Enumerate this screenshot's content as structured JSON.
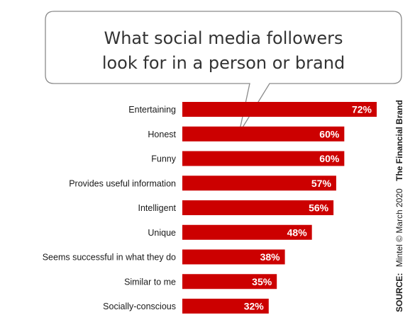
{
  "chart_data": {
    "type": "bar",
    "orientation": "horizontal",
    "title": "What social media followers look for in a person or brand",
    "title_lines": [
      "What social media followers",
      "look for in a person or brand"
    ],
    "categories": [
      "Entertaining",
      "Honest",
      "Funny",
      "Provides useful information",
      "Intelligent",
      "Unique",
      "Seems successful in what they do",
      "Similar to me",
      "Socially-conscious"
    ],
    "values": [
      72,
      60,
      60,
      57,
      56,
      48,
      38,
      35,
      32
    ],
    "value_labels": [
      "72%",
      "60%",
      "60%",
      "57%",
      "56%",
      "48%",
      "38%",
      "35%",
      "32%"
    ],
    "unit": "%",
    "xlim": [
      0,
      72
    ],
    "grid": false,
    "legend": "none",
    "bar_color": "#cc0000"
  },
  "source": {
    "prefix": "SOURCE:",
    "text": "Mintel © March 2020",
    "brand": "The Financial Brand"
  }
}
